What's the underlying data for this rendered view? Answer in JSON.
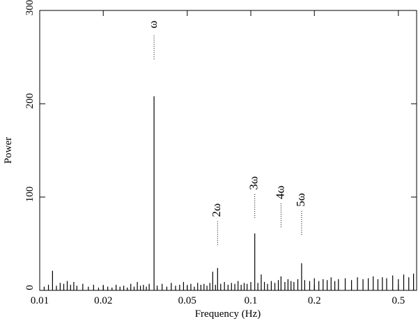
{
  "chart_data": {
    "type": "spike",
    "x_label": "Frequency (Hz)",
    "y_label": "Power",
    "xscale": "log",
    "xlim": [
      0.01,
      0.61
    ],
    "ylim": [
      0,
      300
    ],
    "xticks": [
      0.01,
      0.02,
      0.05,
      0.1,
      0.2,
      0.5
    ],
    "yticks": [
      0,
      100,
      200,
      300
    ],
    "color": "#000000",
    "x": [
      0.0105,
      0.011,
      0.0115,
      0.012,
      0.0125,
      0.013,
      0.0135,
      0.014,
      0.0145,
      0.015,
      0.016,
      0.017,
      0.018,
      0.019,
      0.02,
      0.021,
      0.022,
      0.023,
      0.024,
      0.025,
      0.026,
      0.027,
      0.028,
      0.029,
      0.03,
      0.031,
      0.032,
      0.033,
      0.0348,
      0.036,
      0.038,
      0.04,
      0.042,
      0.044,
      0.046,
      0.048,
      0.05,
      0.052,
      0.054,
      0.056,
      0.058,
      0.06,
      0.062,
      0.064,
      0.066,
      0.068,
      0.0696,
      0.072,
      0.075,
      0.078,
      0.081,
      0.084,
      0.087,
      0.09,
      0.093,
      0.096,
      0.1,
      0.1044,
      0.108,
      0.112,
      0.116,
      0.12,
      0.125,
      0.13,
      0.135,
      0.139,
      0.145,
      0.15,
      0.155,
      0.16,
      0.167,
      0.174,
      0.18,
      0.19,
      0.2,
      0.21,
      0.22,
      0.23,
      0.24,
      0.25,
      0.26,
      0.28,
      0.3,
      0.32,
      0.34,
      0.36,
      0.38,
      0.4,
      0.42,
      0.44,
      0.47,
      0.5,
      0.53,
      0.56,
      0.59
    ],
    "values": [
      4,
      6,
      21,
      5,
      8,
      7,
      10,
      6,
      9,
      5,
      7,
      4,
      6,
      3,
      5,
      4,
      3,
      6,
      4,
      5,
      3,
      7,
      4,
      9,
      5,
      6,
      4,
      7,
      208,
      5,
      7,
      4,
      8,
      5,
      6,
      9,
      5,
      7,
      4,
      8,
      6,
      7,
      5,
      8,
      20,
      6,
      24,
      7,
      9,
      6,
      8,
      7,
      10,
      6,
      8,
      7,
      9,
      61,
      8,
      17,
      9,
      7,
      10,
      8,
      11,
      15,
      9,
      12,
      10,
      9,
      12,
      29,
      11,
      10,
      13,
      10,
      12,
      11,
      14,
      10,
      12,
      13,
      11,
      14,
      12,
      13,
      15,
      12,
      14,
      13,
      16,
      12,
      17,
      14,
      18
    ],
    "annotations": [
      {
        "text": "ω",
        "x": 0.0348,
        "y": 285
      },
      {
        "text": "2ω",
        "x": 0.0696,
        "y": 86
      },
      {
        "text": "3ω",
        "x": 0.1044,
        "y": 115
      },
      {
        "text": "4ω",
        "x": 0.139,
        "y": 105
      },
      {
        "text": "5ω",
        "x": 0.174,
        "y": 97
      }
    ]
  }
}
